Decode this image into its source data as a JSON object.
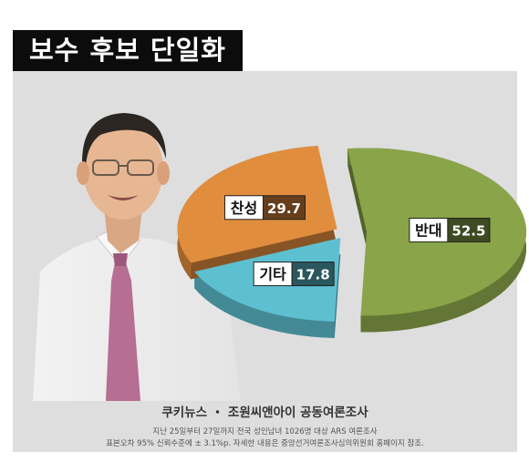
{
  "header": {
    "title": "보수 후보 단일화"
  },
  "chart_data": {
    "type": "pie",
    "title": "보수 후보 단일화",
    "slices": [
      {
        "label": "반대",
        "value": 52.5,
        "color": "#8aa449"
      },
      {
        "label": "기타",
        "value": 17.8,
        "color": "#5dc0d1"
      },
      {
        "label": "찬성",
        "value": 29.7,
        "color": "#e18d3e"
      }
    ]
  },
  "footer": {
    "source": "쿠키뉴스 ・ 조원씨앤아이 공동여론조사",
    "note1": "지난 25일부터 27일까지 전국 성인남녀 1026명 대상 ARS 여론조사",
    "note2": "표본오차 95% 신뢰수준에 ± 3.1%p. 자세한 내용은 중앙선거여론조사심의위원회 홈페이지 참조."
  }
}
